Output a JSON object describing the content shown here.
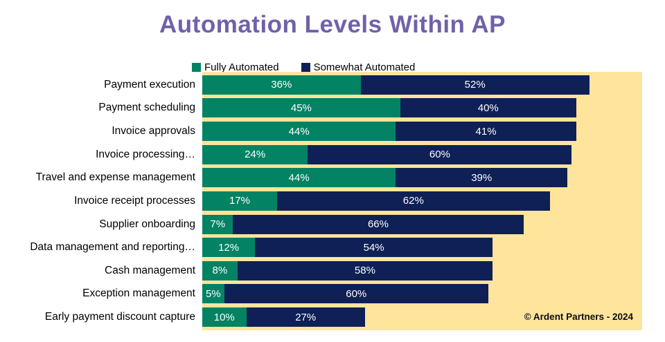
{
  "title": "Automation Levels Within AP",
  "copyright": "© Ardent Partners - 2024",
  "colors": {
    "title": "#7161A9",
    "plot_background": "#FFE49C",
    "fully_automated": "#038363",
    "somewhat_automated": "#0E2055",
    "value_text": "#FFFFFF",
    "label_text": "#000000"
  },
  "legend": [
    {
      "label": "Fully Automated",
      "color": "#038363"
    },
    {
      "label": "Somewhat Automated",
      "color": "#0E2055"
    }
  ],
  "chart_data": {
    "type": "bar",
    "orientation": "horizontal",
    "stacked": true,
    "title": "Automation Levels Within AP",
    "xlabel": "",
    "ylabel": "",
    "xlim": [
      0,
      100
    ],
    "grid": false,
    "legend_position": "top",
    "plot_background": "#FFE49C",
    "value_suffix": "%",
    "categories": [
      "Payment execution",
      "Payment scheduling",
      "Invoice approvals",
      "Invoice processing…",
      "Travel and expense management",
      "Invoice receipt processes",
      "Supplier onboarding",
      "Data management and reporting…",
      "Cash management",
      "Exception management",
      "Early payment discount capture"
    ],
    "series": [
      {
        "name": "Fully Automated",
        "color": "#038363",
        "values": [
          36,
          45,
          44,
          24,
          44,
          17,
          7,
          12,
          8,
          5,
          10
        ]
      },
      {
        "name": "Somewhat Automated",
        "color": "#0E2055",
        "values": [
          52,
          40,
          41,
          60,
          39,
          62,
          66,
          54,
          58,
          60,
          27
        ]
      }
    ]
  }
}
